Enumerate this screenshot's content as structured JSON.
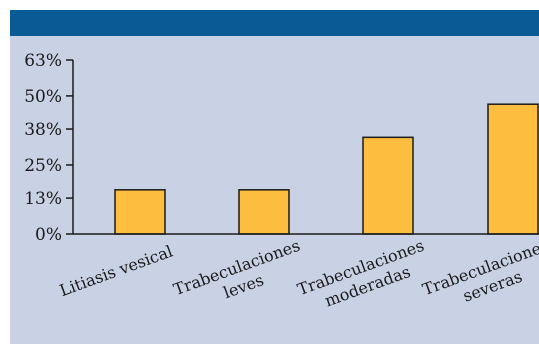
{
  "colors": {
    "header": "#0a5a96",
    "panel": "#c9d1e4",
    "bar": "#fdbd3e",
    "bar_stroke": "#1a1a1a",
    "axis": "#1a1a1a"
  },
  "chart_data": {
    "type": "bar",
    "title": "",
    "xlabel": "",
    "ylabel": "",
    "categories": [
      "Litiasis vesical",
      "Trabeculaciones leves",
      "Trabeculaciones moderadas",
      "Trabeculaciones severas"
    ],
    "category_label_lines": [
      [
        "Litiasis vesical"
      ],
      [
        "Trabeculaciones",
        "leves"
      ],
      [
        "Trabeculaciones",
        "moderadas"
      ],
      [
        "Trabeculaciones",
        "severas"
      ]
    ],
    "values": [
      16,
      16,
      35,
      47
    ],
    "value_unit": "%",
    "ylim": [
      0,
      63
    ],
    "yticks": [
      0,
      13,
      25,
      38,
      50,
      63
    ],
    "ytick_labels": [
      "0%",
      "13%",
      "25%",
      "38%",
      "50%",
      "63%"
    ],
    "grid": false,
    "legend": "none"
  }
}
